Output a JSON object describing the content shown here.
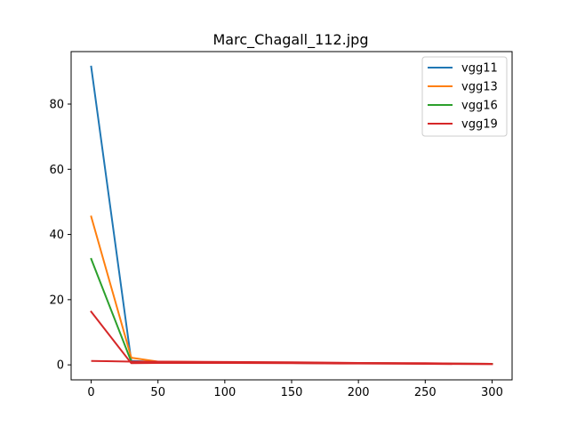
{
  "chart_data": {
    "type": "line",
    "title": "Marc_Chagall_112.jpg",
    "xlabel": "",
    "ylabel": "",
    "xlim": [
      -15,
      315
    ],
    "ylim": [
      -4.6,
      96.1
    ],
    "xticks": [
      0,
      50,
      100,
      150,
      200,
      250,
      300
    ],
    "yticks": [
      0,
      20,
      40,
      60,
      80
    ],
    "x": [
      0,
      30,
      50,
      100,
      150,
      200,
      250,
      300
    ],
    "series": [
      {
        "name": "vgg11",
        "color": "#1f77b4",
        "values": [
          91.5,
          1.2,
          0.9,
          0.8,
          0.6,
          0.5,
          0.4,
          0.3
        ]
      },
      {
        "name": "vgg13",
        "color": "#ff7f0e",
        "values": [
          45.5,
          2.2,
          1.0,
          0.8,
          0.7,
          0.5,
          0.4,
          0.3
        ]
      },
      {
        "name": "vgg16",
        "color": "#2ca02c",
        "values": [
          32.5,
          1.0,
          0.9,
          0.7,
          0.6,
          0.5,
          0.4,
          0.3
        ]
      },
      {
        "name": "vgg19",
        "color": "#d62728",
        "values": [
          16.3,
          0.5,
          0.6,
          0.6,
          0.5,
          0.4,
          0.3,
          0.2
        ]
      }
    ],
    "extra_line": {
      "color": "#d62728",
      "x": [
        0,
        30,
        50,
        100,
        150,
        200,
        250,
        300
      ],
      "values": [
        1.2,
        1.0,
        1.0,
        0.9,
        0.8,
        0.6,
        0.5,
        0.3
      ]
    },
    "legend_position": "top-right",
    "grid": false
  }
}
